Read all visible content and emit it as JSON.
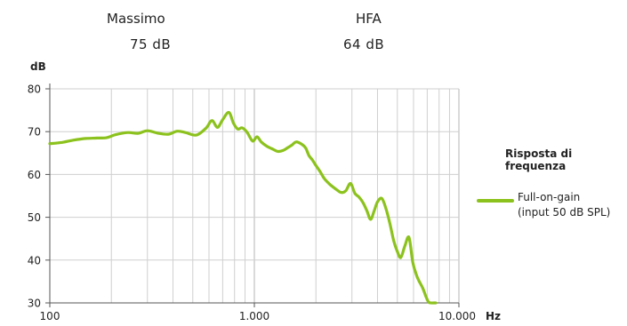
{
  "header": {
    "left_label": "Massimo",
    "left_value": "75 dB",
    "right_label": "HFA",
    "right_value": "64 dB"
  },
  "chart_data": {
    "type": "line",
    "ylabel": "dB",
    "xunit": "Hz",
    "xscale": "log",
    "xlim": [
      100,
      10000
    ],
    "ylim": [
      30,
      80
    ],
    "yticks": [
      30,
      40,
      50,
      60,
      70,
      80
    ],
    "xtick_labels": [
      "100",
      "1.000",
      "10.000"
    ],
    "grid": true,
    "legend_title": "Risposta di frequenza",
    "legend_position": "right",
    "series": [
      {
        "name": "Full-on-gain\n(input 50 dB SPL)",
        "name_line1": "Full-on-gain",
        "name_line2": "(input 50 dB SPL)",
        "color": "#8cc21d",
        "x": [
          100,
          115,
          130,
          150,
          170,
          190,
          210,
          240,
          270,
          300,
          340,
          380,
          420,
          460,
          520,
          580,
          620,
          660,
          700,
          750,
          790,
          830,
          870,
          920,
          980,
          1030,
          1080,
          1150,
          1220,
          1300,
          1380,
          1450,
          1520,
          1600,
          1700,
          1780,
          1850,
          1920,
          2000,
          2100,
          2200,
          2350,
          2500,
          2650,
          2800,
          2950,
          3100,
          3250,
          3400,
          3550,
          3700,
          3850,
          4000,
          4200,
          4400,
          4600,
          4800,
          5000,
          5200,
          5450,
          5700,
          5950,
          6200,
          6400,
          6650,
          6900,
          7100,
          7300,
          7500,
          7700
        ],
        "y": [
          67.2,
          67.5,
          68.0,
          68.4,
          68.5,
          68.6,
          69.3,
          69.8,
          69.6,
          70.2,
          69.6,
          69.4,
          70.1,
          69.8,
          69.2,
          70.8,
          72.6,
          71.0,
          72.8,
          74.5,
          72.0,
          70.6,
          70.9,
          69.9,
          67.8,
          68.8,
          67.6,
          66.6,
          66.0,
          65.4,
          65.6,
          66.2,
          66.8,
          67.6,
          67.1,
          66.2,
          64.4,
          63.4,
          62.1,
          60.6,
          59.0,
          57.6,
          56.6,
          55.8,
          56.2,
          57.9,
          55.6,
          54.7,
          53.4,
          51.5,
          49.5,
          51.5,
          53.6,
          54.4,
          52.0,
          48.5,
          44.5,
          42.0,
          40.6,
          43.4,
          45.3,
          39.5,
          36.5,
          35.0,
          33.5,
          31.5,
          30.2,
          30.0,
          30.0,
          30.0
        ]
      }
    ]
  }
}
